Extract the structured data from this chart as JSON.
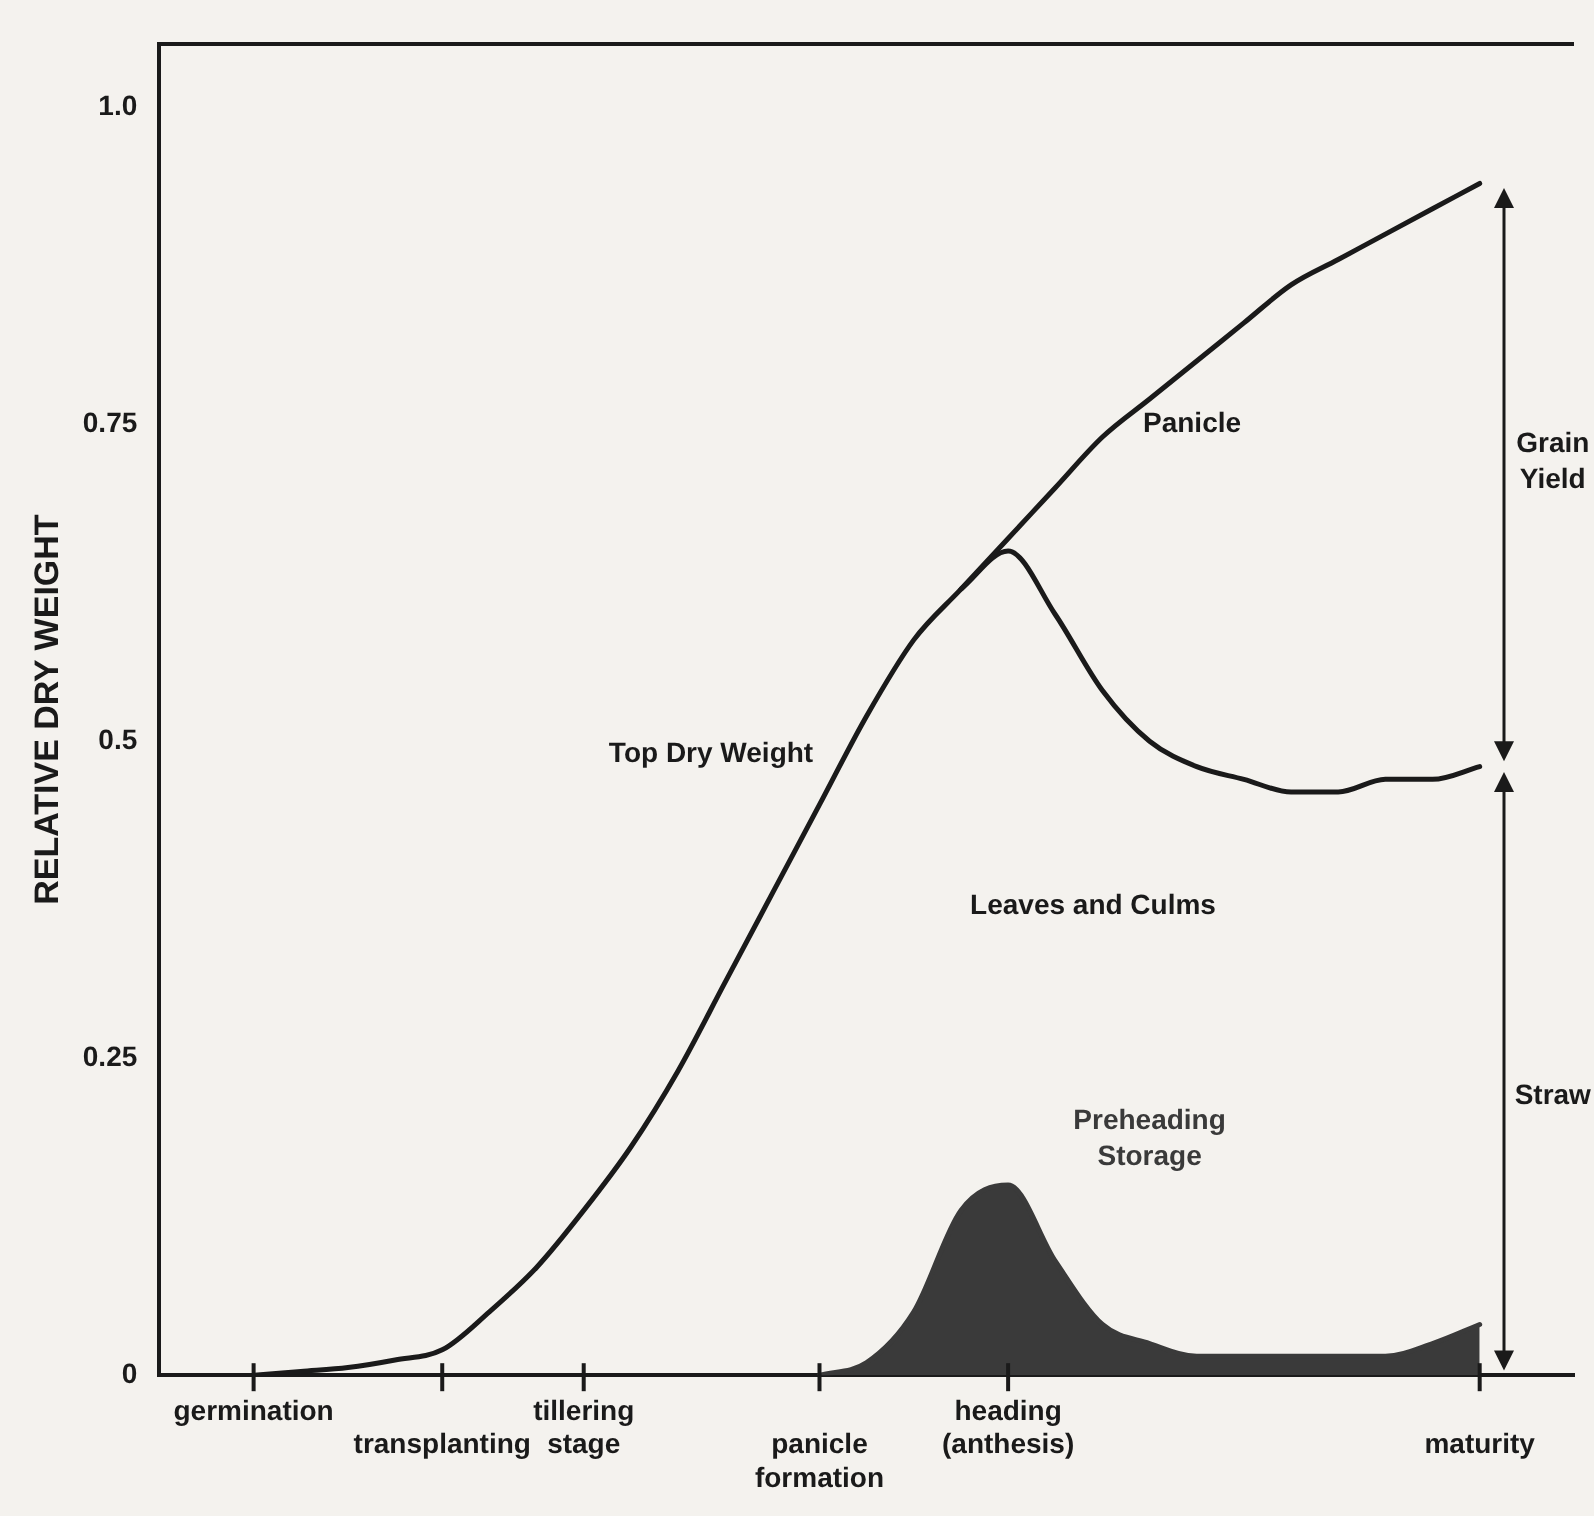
{
  "chart_data": {
    "type": "line",
    "ylabel": "RELATIVE DRY WEIGHT",
    "categories": [
      null,
      null,
      "germination",
      null,
      null,
      null,
      "transplanting",
      null,
      null,
      "tillering stage",
      null,
      null,
      null,
      null,
      "panicle formation",
      null,
      null,
      null,
      "heading (anthesis)",
      null,
      null,
      null,
      null,
      null,
      null,
      null,
      null,
      null,
      "maturity",
      null,
      null
    ],
    "ylim": [
      0,
      1.05
    ],
    "yticks": [
      0,
      0.25,
      0.5,
      0.75,
      {
        "value": 1,
        "label": "1.0"
      }
    ],
    "grid": false,
    "legend": false,
    "marker": "none",
    "line_style": "solid",
    "series": [
      {
        "name": "Top Dry Weight",
        "type": "line",
        "color": "#1a1a1a",
        "values": [
          null,
          null,
          0,
          0.003,
          0.006,
          0.012,
          0.02,
          0.05,
          0.085,
          0.13,
          0.18,
          0.24,
          0.31,
          0.38,
          0.45,
          0.52,
          0.58,
          0.62,
          0.66,
          0.7,
          0.74,
          0.77,
          0.8,
          0.83,
          0.86,
          0.88,
          0.9,
          0.92,
          0.94,
          null,
          null
        ]
      },
      {
        "type": "line",
        "color": "#1a1a1a",
        "values": [
          null,
          null,
          null,
          null,
          null,
          null,
          null,
          null,
          null,
          null,
          null,
          null,
          null,
          null,
          null,
          null,
          null,
          0.62,
          0.65,
          0.6,
          0.54,
          0.5,
          0.48,
          0.47,
          0.46,
          0.46,
          0.47,
          0.47,
          0.48,
          null,
          null
        ]
      },
      {
        "name": "Preheading Storage",
        "type": "area",
        "color": "#3a3a3a",
        "values": [
          null,
          null,
          null,
          null,
          null,
          null,
          null,
          null,
          null,
          null,
          null,
          null,
          null,
          null,
          0,
          0.01,
          0.05,
          0.13,
          0.15,
          0.09,
          0.04,
          0.025,
          0.015,
          0.015,
          0.015,
          0.015,
          0.015,
          0.025,
          0.04,
          null,
          null
        ]
      }
    ],
    "annotations": [
      "Panicle",
      "Leaves and Culms",
      "Grain Yield",
      "Straw"
    ]
  }
}
